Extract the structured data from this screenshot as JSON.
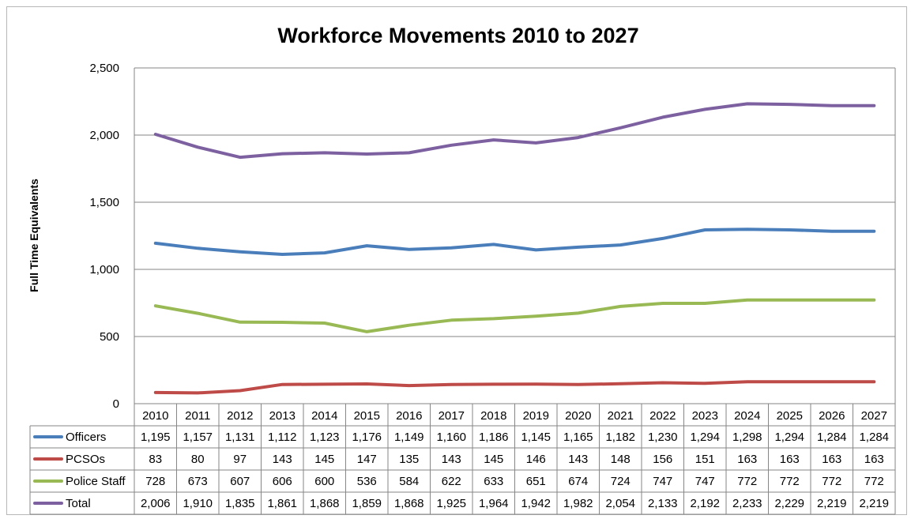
{
  "chart_data": {
    "type": "line",
    "title": "Workforce Movements 2010 to 2027",
    "xlabel": "",
    "ylabel": "Full Time Equivalents",
    "ylim": [
      0,
      2500
    ],
    "yticks": [
      0,
      500,
      1000,
      1500,
      2000,
      2500
    ],
    "ytick_labels": [
      "0",
      "500",
      "1,000",
      "1,500",
      "2,000",
      "2,500"
    ],
    "grid": true,
    "legend_placement": "data-table",
    "categories": [
      "2010",
      "2011",
      "2012",
      "2013",
      "2014",
      "2015",
      "2016",
      "2017",
      "2018",
      "2019",
      "2020",
      "2021",
      "2022",
      "2023",
      "2024",
      "2025",
      "2026",
      "2027"
    ],
    "series": [
      {
        "name": "Officers",
        "color": "#4a7ebb",
        "values": [
          1195,
          1157,
          1131,
          1112,
          1123,
          1176,
          1149,
          1160,
          1186,
          1145,
          1165,
          1182,
          1230,
          1294,
          1298,
          1294,
          1284,
          1284
        ],
        "labels": [
          "1,195",
          "1,157",
          "1,131",
          "1,112",
          "1,123",
          "1,176",
          "1,149",
          "1,160",
          "1,186",
          "1,145",
          "1,165",
          "1,182",
          "1,230",
          "1,294",
          "1,298",
          "1,294",
          "1,284",
          "1,284"
        ]
      },
      {
        "name": "PCSOs",
        "color": "#be4b48",
        "values": [
          83,
          80,
          97,
          143,
          145,
          147,
          135,
          143,
          145,
          146,
          143,
          148,
          156,
          151,
          163,
          163,
          163,
          163
        ],
        "labels": [
          "83",
          "80",
          "97",
          "143",
          "145",
          "147",
          "135",
          "143",
          "145",
          "146",
          "143",
          "148",
          "156",
          "151",
          "163",
          "163",
          "163",
          "163"
        ]
      },
      {
        "name": "Police Staff",
        "color": "#98b954",
        "values": [
          728,
          673,
          607,
          606,
          600,
          536,
          584,
          622,
          633,
          651,
          674,
          724,
          747,
          747,
          772,
          772,
          772,
          772
        ],
        "labels": [
          "728",
          "673",
          "607",
          "606",
          "600",
          "536",
          "584",
          "622",
          "633",
          "651",
          "674",
          "724",
          "747",
          "747",
          "772",
          "772",
          "772",
          "772"
        ]
      },
      {
        "name": "Total",
        "color": "#7d60a0",
        "values": [
          2006,
          1910,
          1835,
          1861,
          1868,
          1859,
          1868,
          1925,
          1964,
          1942,
          1982,
          2054,
          2133,
          2192,
          2233,
          2229,
          2219,
          2219
        ],
        "labels": [
          "2,006",
          "1,910",
          "1,835",
          "1,861",
          "1,868",
          "1,859",
          "1,868",
          "1,925",
          "1,964",
          "1,942",
          "1,982",
          "2,054",
          "2,133",
          "2,192",
          "2,233",
          "2,229",
          "2,219",
          "2,219"
        ]
      }
    ]
  }
}
